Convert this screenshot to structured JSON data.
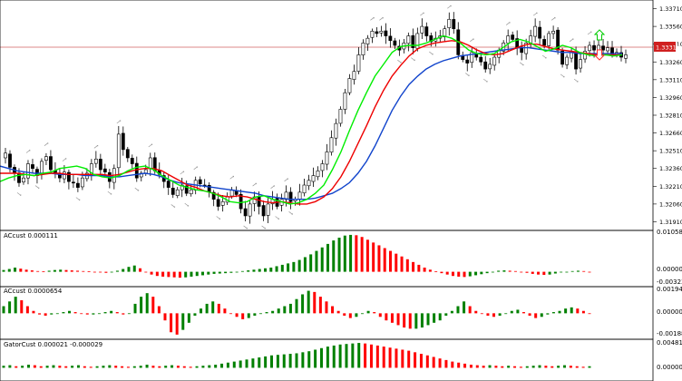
{
  "chart": {
    "panes": [
      {
        "id": "price"
      },
      {
        "id": "ac1",
        "label": "ACcust 0.000111",
        "ticks": [
          "0.010580",
          "0.000000",
          "-0.003233"
        ]
      },
      {
        "id": "ac2",
        "label": "ACcust 0.0000654",
        "ticks": [
          "0.0019422",
          "0.0000000",
          "-0.0018869"
        ]
      },
      {
        "id": "gator",
        "label": "GatorCust 0.000021 -0.000029",
        "ticks": [
          "0.004810",
          "0.000000"
        ]
      }
    ],
    "price_ticks": [
      "1.33710",
      "1.33560",
      "1.33410",
      "1.33260",
      "1.33110",
      "1.32960",
      "1.32810",
      "1.32660",
      "1.32510",
      "1.32360",
      "1.32210",
      "1.32060",
      "1.31910"
    ],
    "current_price": "1.33319",
    "colors": {
      "bull": "#008000",
      "bear": "#ff0000",
      "lips": "#00ee00",
      "teeth": "#ee0000",
      "jaw": "#1144cc",
      "hline": "#d06060",
      "frame": "#000000",
      "candle_bull": "#ffffff",
      "candle_bear": "#000000",
      "buy_arrow": "#00cc00",
      "sell_arrow": "#ff3030"
    },
    "icons": {
      "buy_signal": "up-arrow-icon",
      "sell_signal": "down-arrow-icon",
      "fractal": "fractal-arrow-icon"
    }
  },
  "chart_data": {
    "type": "candlestick",
    "price_axis": {
      "min": 1.3186,
      "max": 1.3376,
      "ticks": [
        1.3371,
        1.3356,
        1.3341,
        1.3326,
        1.3311,
        1.3296,
        1.3281,
        1.3266,
        1.3251,
        1.3236,
        1.3221,
        1.3206,
        1.3191
      ]
    },
    "current_price": 1.33319,
    "candles_close": [
      1.3249,
      1.3237,
      1.3232,
      1.3224,
      1.3228,
      1.324,
      1.3236,
      1.323,
      1.3242,
      1.3246,
      1.3235,
      1.3232,
      1.3228,
      1.3233,
      1.3225,
      1.3224,
      1.322,
      1.3228,
      1.3232,
      1.324,
      1.3244,
      1.3235,
      1.3233,
      1.3225,
      1.3236,
      1.3265,
      1.3252,
      1.3245,
      1.324,
      1.3228,
      1.3232,
      1.3235,
      1.3245,
      1.3234,
      1.3231,
      1.3225,
      1.322,
      1.3214,
      1.3218,
      1.3222,
      1.3215,
      1.3218,
      1.3226,
      1.3223,
      1.3222,
      1.3216,
      1.321,
      1.3204,
      1.3208,
      1.3212,
      1.3218,
      1.3214,
      1.3202,
      1.3196,
      1.3206,
      1.3212,
      1.3204,
      1.3196,
      1.3206,
      1.321,
      1.3204,
      1.321,
      1.3216,
      1.3208,
      1.321,
      1.3216,
      1.3222,
      1.3226,
      1.323,
      1.3234,
      1.324,
      1.325,
      1.3262,
      1.3274,
      1.3286,
      1.33,
      1.3312,
      1.3318,
      1.3332,
      1.3342,
      1.3346,
      1.3352,
      1.335,
      1.3352,
      1.3348,
      1.3344,
      1.334,
      1.3336,
      1.3342,
      1.3348,
      1.3338,
      1.335,
      1.3356,
      1.3348,
      1.3343,
      1.3346,
      1.3348,
      1.3354,
      1.3362,
      1.3354,
      1.3332,
      1.3328,
      1.3325,
      1.3334,
      1.333,
      1.3326,
      1.332,
      1.3324,
      1.333,
      1.3336,
      1.3342,
      1.3348,
      1.3345,
      1.3338,
      1.3334,
      1.3342,
      1.3348,
      1.3356,
      1.3346,
      1.334,
      1.335,
      1.3352,
      1.3336,
      1.3324,
      1.333,
      1.3334,
      1.332,
      1.3328,
      1.3335,
      1.334,
      1.3336,
      1.334,
      1.3336,
      1.3338,
      1.3332,
      1.3334,
      1.333,
      1.3332
    ],
    "alligator": {
      "lips": [
        1.3225,
        1.3228,
        1.323,
        1.3231,
        1.323,
        1.3232,
        1.3233,
        1.3236,
        1.3237,
        1.3238,
        1.3236,
        1.3231,
        1.3229,
        1.3228,
        1.323,
        1.3234,
        1.3237,
        1.3238,
        1.3235,
        1.323,
        1.3226,
        1.3222,
        1.322,
        1.3218,
        1.3217,
        1.3215,
        1.3212,
        1.3208,
        1.3207,
        1.3208,
        1.3212,
        1.3213,
        1.321,
        1.3208,
        1.3206,
        1.3207,
        1.321,
        1.3215,
        1.3222,
        1.3235,
        1.325,
        1.3268,
        1.3285,
        1.33,
        1.3314,
        1.3324,
        1.3334,
        1.3339,
        1.334,
        1.334,
        1.3342,
        1.3345,
        1.3348,
        1.3346,
        1.3342,
        1.3336,
        1.3333,
        1.3332,
        1.3333,
        1.3338,
        1.3343,
        1.3345,
        1.3343,
        1.3339,
        1.3335,
        1.3337,
        1.334,
        1.3338,
        1.3334,
        1.3332,
        1.3331,
        1.3332,
        1.3331,
        1.3332
      ],
      "teeth": [
        1.3232,
        1.3232,
        1.3232,
        1.3231,
        1.323,
        1.3231,
        1.3232,
        1.3232,
        1.3231,
        1.3231,
        1.3231,
        1.3231,
        1.3231,
        1.323,
        1.3231,
        1.3233,
        1.3235,
        1.3236,
        1.3236,
        1.3234,
        1.323,
        1.3226,
        1.3222,
        1.322,
        1.3217,
        1.3215,
        1.3213,
        1.3212,
        1.3213,
        1.3212,
        1.321,
        1.3208,
        1.3207,
        1.3208,
        1.3207,
        1.3206,
        1.3206,
        1.3208,
        1.3212,
        1.3219,
        1.3229,
        1.3242,
        1.3257,
        1.3272,
        1.3288,
        1.3302,
        1.3314,
        1.3323,
        1.3331,
        1.3337,
        1.334,
        1.3342,
        1.3343,
        1.3344,
        1.3343,
        1.334,
        1.3336,
        1.3333,
        1.3332,
        1.3333,
        1.3336,
        1.3339,
        1.3341,
        1.3341,
        1.3339,
        1.3337,
        1.3336,
        1.3335,
        1.3334,
        1.3333,
        1.3332,
        1.3332,
        1.3332,
        1.3332
      ],
      "jaw": [
        1.3238,
        1.3236,
        1.3234,
        1.3233,
        1.3232,
        1.3232,
        1.3232,
        1.3231,
        1.3231,
        1.3231,
        1.323,
        1.323,
        1.323,
        1.3229,
        1.3229,
        1.323,
        1.3231,
        1.3232,
        1.3231,
        1.3229,
        1.3226,
        1.3224,
        1.3223,
        1.3222,
        1.3221,
        1.322,
        1.3219,
        1.3218,
        1.3217,
        1.3216,
        1.3215,
        1.3213,
        1.3212,
        1.3211,
        1.321,
        1.321,
        1.321,
        1.3211,
        1.3213,
        1.3215,
        1.3219,
        1.3224,
        1.3232,
        1.3242,
        1.3255,
        1.327,
        1.3285,
        1.3297,
        1.3307,
        1.3314,
        1.332,
        1.3324,
        1.3327,
        1.3329,
        1.3331,
        1.3332,
        1.3333,
        1.3334,
        1.3335,
        1.3336,
        1.3337,
        1.3338,
        1.3338,
        1.3337,
        1.3336,
        1.3335,
        1.3334,
        1.3334,
        1.3333,
        1.3333,
        1.3333,
        1.3333,
        1.3333,
        1.3333
      ]
    },
    "ac_cust": {
      "range": [
        -0.003233,
        0.01058
      ],
      "values": [
        0.0005,
        0.0008,
        0.0012,
        0.0009,
        0.0006,
        0.0004,
        0.0002,
        0.0001,
        0.0003,
        0.0005,
        0.0006,
        0.0005,
        0.0004,
        0.0003,
        0.0002,
        0.0001,
        0.0,
        -0.0002,
        -0.0003,
        -0.0001,
        0.0003,
        0.0008,
        0.0014,
        0.0018,
        0.001,
        -0.0002,
        -0.0008,
        -0.0012,
        -0.0014,
        -0.0015,
        -0.0016,
        -0.0017,
        -0.0016,
        -0.0014,
        -0.0012,
        -0.001,
        -0.0008,
        -0.0006,
        -0.0005,
        -0.0004,
        -0.0003,
        -0.0001,
        0.0002,
        0.0004,
        0.0006,
        0.0008,
        0.001,
        0.0012,
        0.0016,
        0.002,
        0.0024,
        0.0028,
        0.0034,
        0.0042,
        0.005,
        0.006,
        0.007,
        0.008,
        0.009,
        0.0098,
        0.0104,
        0.0106,
        0.0105,
        0.01,
        0.0092,
        0.0084,
        0.0076,
        0.0068,
        0.006,
        0.0052,
        0.0044,
        0.0036,
        0.0028,
        0.002,
        0.0012,
        0.0006,
        0.0001,
        -0.0004,
        -0.0008,
        -0.0012,
        -0.0014,
        -0.0015,
        -0.0013,
        -0.001,
        -0.0007,
        -0.0004,
        0.0,
        0.0003,
        0.0004,
        0.0003,
        0.0002,
        0.0,
        -0.0003,
        -0.0006,
        -0.0008,
        -0.0009,
        -0.0008,
        -0.0005,
        -0.0002,
        0.0,
        0.0002,
        0.0003,
        0.0002,
        0.0
      ]
    },
    "ac_cust2": {
      "range": [
        -0.0018869,
        0.0019422
      ],
      "values": [
        0.0006,
        0.001,
        0.0014,
        0.0011,
        0.0006,
        0.0002,
        -0.0001,
        -0.0002,
        -0.0001,
        0.0,
        0.0001,
        0.0002,
        0.0001,
        0.0,
        -0.0001,
        -0.0001,
        0.0,
        0.0001,
        0.0002,
        0.0001,
        -0.0001,
        0.0,
        0.0008,
        0.0014,
        0.0017,
        0.0014,
        0.0006,
        -0.0006,
        -0.0016,
        -0.0018,
        -0.0014,
        -0.0008,
        -0.0002,
        0.0004,
        0.0008,
        0.001,
        0.0008,
        0.0004,
        0.0,
        -0.0003,
        -0.0005,
        -0.0004,
        -0.0002,
        0.0,
        0.0001,
        0.0002,
        0.0004,
        0.0006,
        0.0008,
        0.0012,
        0.0016,
        0.0019,
        0.0018,
        0.0014,
        0.001,
        0.0006,
        0.0002,
        -0.0002,
        -0.0004,
        -0.0003,
        0.0,
        0.0002,
        0.0001,
        -0.0003,
        -0.0006,
        -0.0008,
        -0.001,
        -0.0012,
        -0.0013,
        -0.0013,
        -0.0012,
        -0.001,
        -0.0008,
        -0.0006,
        -0.0002,
        0.0002,
        0.0006,
        0.001,
        0.0006,
        0.0002,
        0.0,
        -0.0002,
        -0.0003,
        -0.0002,
        0.0,
        0.0002,
        0.0003,
        0.0001,
        -0.0002,
        -0.0004,
        -0.0003,
        -0.0001,
        0.0001,
        0.0002,
        0.0004,
        0.0005,
        0.0004,
        0.0002,
        0.0
      ]
    },
    "gator": {
      "range": [
        -0.0022,
        0.00481
      ],
      "values": [
        0.0004,
        0.0005,
        0.0003,
        0.0004,
        0.0006,
        0.0005,
        0.0003,
        0.0004,
        0.0005,
        0.0004,
        0.0003,
        0.0004,
        0.0005,
        0.0003,
        0.0002,
        0.0003,
        0.0004,
        0.0005,
        0.0004,
        0.0003,
        0.0002,
        0.0003,
        0.0004,
        0.0006,
        0.0004,
        0.0003,
        0.0004,
        0.0005,
        0.0004,
        0.0003,
        0.0002,
        0.0003,
        0.0004,
        0.0005,
        0.0006,
        0.0008,
        0.001,
        0.0012,
        0.0014,
        0.0016,
        0.0018,
        0.002,
        0.0022,
        0.0024,
        0.0025,
        0.0026,
        0.0027,
        0.0028,
        0.003,
        0.0032,
        0.0035,
        0.0038,
        0.0041,
        0.0043,
        0.0045,
        0.0046,
        0.0047,
        0.0048,
        0.0047,
        0.0045,
        0.0043,
        0.0041,
        0.0039,
        0.0037,
        0.0035,
        0.0033,
        0.003,
        0.0027,
        0.0024,
        0.0021,
        0.0018,
        0.0015,
        0.0012,
        0.001,
        0.0008,
        0.0006,
        0.0005,
        0.0004,
        0.0005,
        0.0004,
        0.0003,
        0.0004,
        0.0003,
        0.0002,
        0.0003,
        0.0004,
        0.0005,
        0.0004,
        0.0003,
        0.0004,
        0.0005,
        0.0004,
        0.0003,
        0.0002,
        0.0003
      ]
    }
  }
}
